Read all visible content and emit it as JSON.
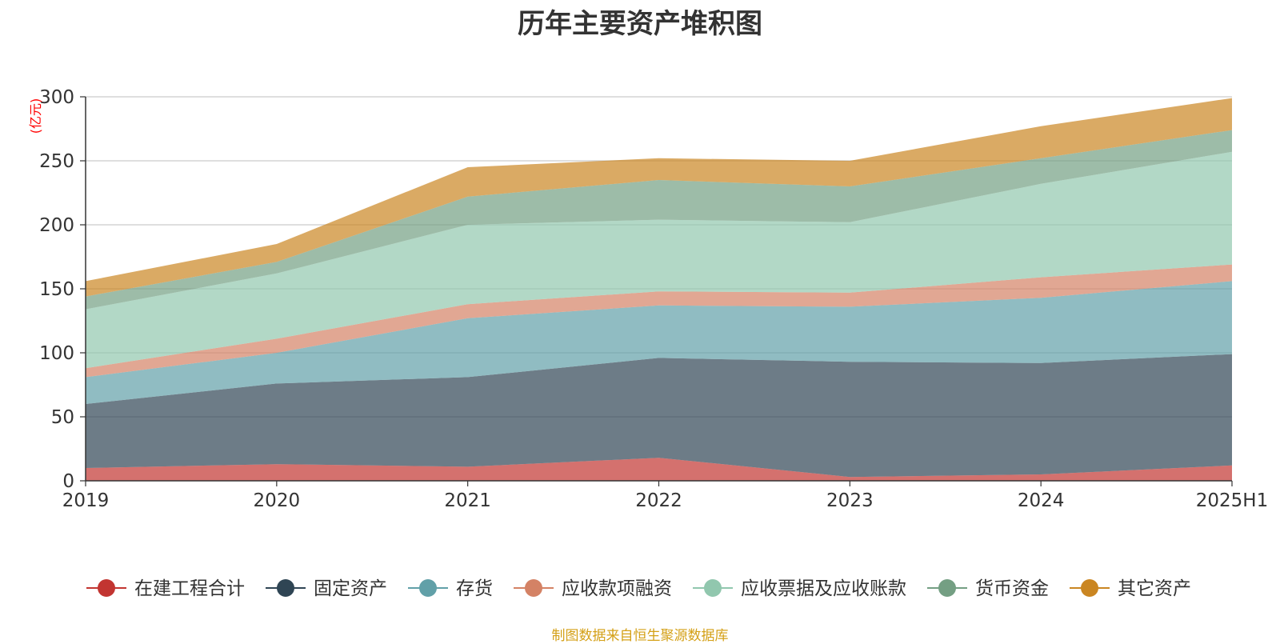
{
  "chart_data": {
    "type": "area",
    "stacked": true,
    "title": "历年主要资产堆积图",
    "ylabel": "(亿元)",
    "xlabel": "",
    "categories": [
      "2019",
      "2020",
      "2021",
      "2022",
      "2023",
      "2024",
      "2025H1"
    ],
    "ylim": [
      0,
      300
    ],
    "yticks": [
      0,
      50,
      100,
      150,
      200,
      250,
      300
    ],
    "grid": true,
    "legend_position": "bottom",
    "series": [
      {
        "name": "在建工程合计",
        "color": "#c23531",
        "values": [
          10,
          13,
          11,
          18,
          3,
          5,
          12
        ]
      },
      {
        "name": "固定资产",
        "color": "#2f4554",
        "values": [
          50,
          63,
          70,
          78,
          90,
          87,
          87
        ]
      },
      {
        "name": "存货",
        "color": "#61a0a8",
        "values": [
          21,
          24,
          46,
          41,
          43,
          51,
          57
        ]
      },
      {
        "name": "应收款项融资",
        "color": "#d48265",
        "values": [
          7,
          11,
          11,
          11,
          11,
          16,
          13
        ]
      },
      {
        "name": "应收票据及应收账款",
        "color": "#91c7ae",
        "values": [
          46,
          51,
          62,
          56,
          55,
          73,
          88
        ]
      },
      {
        "name": "货币资金",
        "color": "#749f83",
        "values": [
          10,
          9,
          22,
          31,
          28,
          20,
          17
        ]
      },
      {
        "name": "其它资产",
        "color": "#ca8622",
        "values": [
          12,
          14,
          23,
          17,
          20,
          25,
          25
        ]
      }
    ]
  },
  "source_note": "制图数据来自恒生聚源数据库"
}
